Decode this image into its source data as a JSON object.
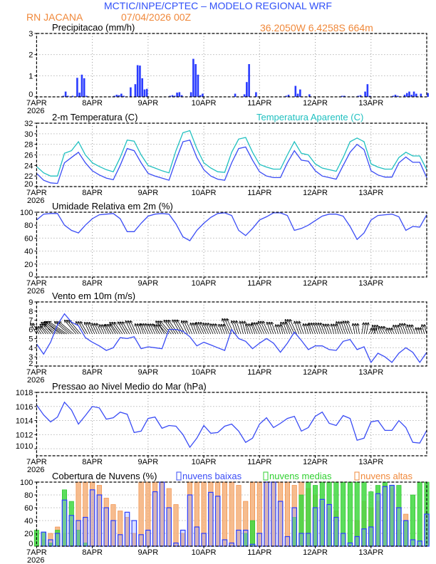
{
  "header": {
    "title": "MCTIC/INPE/CPTEC – MODELO REGIONAL WRF",
    "station": "RN JACANA",
    "run": "07/04/2026 00Z",
    "location": "36.2050W 6.4258S 664m"
  },
  "colors": {
    "title": "#3050f8",
    "orange": "#f0883a",
    "cyan": "#20c0c0",
    "line": "#3a4cf5",
    "low": "#3a4cf5",
    "mid": "#30d030",
    "high": "#f5a060"
  },
  "time_axis": {
    "labels": [
      "7APR",
      "8APR",
      "9APR",
      "10APR",
      "11APR",
      "12APR",
      "13APR"
    ],
    "year": "2026",
    "start": "7APR 00Z",
    "end": "14APR 00Z"
  },
  "chart_data": [
    {
      "type": "bar",
      "title": "Precipitacao (mm/h)",
      "ylim": [
        0,
        3
      ],
      "yticks": [
        "0",
        "1",
        "2",
        "3"
      ],
      "time_step": "1h",
      "grid": true,
      "values": [
        0,
        0,
        0,
        0,
        0,
        0,
        0,
        0,
        0,
        0,
        0,
        0.05,
        0.25,
        0.05,
        0,
        0.05,
        0,
        0.9,
        0.2,
        1.05,
        0.88,
        0.05,
        0,
        0,
        0,
        0,
        0,
        0,
        0,
        0,
        0,
        0,
        0,
        0.05,
        0.1,
        0.08,
        0.15,
        0.05,
        0,
        0,
        0.45,
        0,
        0.6,
        1.5,
        1.48,
        0.88,
        0.35,
        0.38,
        0,
        0,
        0,
        0,
        0,
        0,
        0,
        0,
        0,
        0.05,
        0.08,
        0.05,
        0.2,
        0.22,
        0.08,
        0,
        0,
        0,
        0.22,
        1.8,
        1.55,
        1.05,
        0.08,
        0.15,
        0,
        0,
        0,
        0,
        0,
        0,
        0,
        0,
        0,
        0,
        0,
        0,
        0,
        0.15,
        0,
        0,
        0,
        0.12,
        0.7,
        1.55,
        0,
        0,
        0.22,
        0,
        0,
        0,
        0,
        0,
        0,
        0,
        0,
        0,
        0,
        0,
        0,
        0.05,
        0.1,
        0,
        0,
        0.52,
        0.15,
        0.35,
        0,
        0,
        0,
        0.12,
        0,
        0,
        0,
        0,
        0,
        0,
        0,
        0,
        0,
        0,
        0,
        0,
        0,
        0.05,
        0.05,
        0,
        0,
        0,
        0,
        0,
        0.05,
        0.08,
        0,
        0.25,
        0.6,
        0.05,
        0,
        0,
        0,
        0,
        0,
        0,
        0,
        0,
        0,
        0.05,
        0.1,
        0.05,
        0,
        0,
        0.1,
        0.18,
        0.25,
        0.1,
        0.25,
        0.15,
        0,
        0.15,
        0,
        0,
        0.18
      ]
    },
    {
      "type": "line",
      "title": "2-m Temperatura (C)",
      "legend": "Temperatura Aparente (C)",
      "ylim": [
        20,
        32
      ],
      "yticks": [
        "20",
        "22",
        "24",
        "26",
        "28",
        "30",
        "32"
      ],
      "time_step": "3h",
      "grid": true,
      "series": [
        {
          "name": "2-m Temperatura (C)",
          "values": [
            22.5,
            21.2,
            20.7,
            20.6,
            24.5,
            25.5,
            26.5,
            24.5,
            23.0,
            22.2,
            21.6,
            21.3,
            24.0,
            27.2,
            26.8,
            24.5,
            22.5,
            22.0,
            21.6,
            21.2,
            25.0,
            28.5,
            28.8,
            25.5,
            23.2,
            22.0,
            21.4,
            21.2,
            24.5,
            27.2,
            27.5,
            25.0,
            22.8,
            22.0,
            21.7,
            21.7,
            24.5,
            26.8,
            25.0,
            24.8,
            23.0,
            22.0,
            21.7,
            21.4,
            24.0,
            26.5,
            28.0,
            27.0,
            23.0,
            22.2,
            21.8,
            21.8,
            24.5,
            25.6,
            24.6,
            24.6,
            21.7
          ]
        },
        {
          "name": "Temperatura Aparente (C)",
          "values": [
            23.8,
            22.6,
            22.0,
            22.0,
            26.3,
            26.8,
            28.5,
            26.0,
            24.5,
            23.8,
            23.2,
            22.8,
            25.5,
            28.8,
            28.6,
            26.0,
            24.0,
            23.5,
            23.0,
            22.6,
            26.8,
            30.2,
            30.6,
            27.2,
            24.5,
            23.5,
            22.8,
            22.7,
            26.5,
            29.0,
            29.3,
            26.5,
            24.2,
            23.7,
            23.3,
            23.3,
            26.0,
            28.5,
            26.3,
            26.0,
            24.3,
            23.5,
            23.2,
            22.9,
            25.5,
            28.5,
            29.2,
            28.5,
            24.3,
            23.7,
            23.3,
            23.3,
            25.5,
            26.5,
            25.8,
            25.8,
            23.2
          ]
        }
      ]
    },
    {
      "type": "line",
      "title": "Umidade Relativa em 2m (%)",
      "ylim": [
        0,
        100
      ],
      "yticks": [
        "0",
        "20",
        "40",
        "60",
        "80",
        "100"
      ],
      "time_step": "3h",
      "grid": true,
      "values": [
        88,
        97,
        98,
        98,
        80,
        72,
        68,
        80,
        90,
        96,
        97,
        98,
        90,
        70,
        70,
        83,
        94,
        97,
        98,
        97,
        82,
        62,
        56,
        72,
        83,
        92,
        98,
        99,
        95,
        72,
        64,
        75,
        88,
        93,
        99,
        99,
        95,
        72,
        75,
        80,
        87,
        94,
        97,
        97,
        94,
        78,
        58,
        68,
        88,
        95,
        96,
        97,
        93,
        72,
        78,
        77,
        96
      ]
    },
    {
      "type": "line+vectors",
      "title": "Vento em 10m (m/s)",
      "ylim": [
        2,
        9
      ],
      "yticks": [
        "2",
        "3",
        "4",
        "5",
        "6",
        "7",
        "8",
        "9"
      ],
      "time_step": "3h",
      "grid": true,
      "values": [
        4.4,
        3.3,
        4.6,
        6.5,
        7.7,
        6.8,
        6.4,
        5.1,
        4.6,
        4.2,
        3.7,
        4.0,
        5.1,
        5.0,
        5.2,
        3.9,
        4.1,
        4.0,
        3.9,
        6.0,
        6.0,
        5.8,
        5.2,
        4.2,
        4.6,
        4.3,
        4.0,
        3.7,
        6.0,
        5.0,
        4.7,
        3.9,
        4.5,
        5.0,
        4.5,
        3.5,
        4.5,
        5.7,
        4.8,
        3.8,
        4.2,
        4.2,
        3.8,
        3.7,
        4.7,
        4.9,
        3.8,
        4.1,
        2.4,
        3.4,
        3.0,
        2.4,
        3.4,
        4.0,
        3.5,
        2.4,
        3.5
      ],
      "direction_deg": [
        120,
        125,
        130,
        140,
        145,
        140,
        130,
        120,
        115,
        115,
        115,
        120,
        125,
        120,
        115,
        110,
        115,
        115,
        120,
        130,
        125,
        120,
        115,
        110,
        115,
        115,
        115,
        110,
        115,
        110,
        105,
        110,
        115,
        115,
        110,
        105,
        110,
        115,
        110,
        105,
        110,
        110,
        110,
        105,
        110,
        110,
        100,
        80,
        60,
        110,
        115,
        115,
        110,
        110,
        110,
        105,
        105
      ]
    },
    {
      "type": "line",
      "title": "Pressao ao Nivel Medio do Mar (hPa)",
      "ylim": [
        1009,
        1018
      ],
      "yticks": [
        "1010",
        "1012",
        "1014",
        "1016",
        "1018"
      ],
      "time_step": "3h",
      "grid": true,
      "values": [
        1016.2,
        1014.8,
        1013.8,
        1014.5,
        1016.6,
        1015.5,
        1013.5,
        1014.7,
        1016.0,
        1015.8,
        1014.2,
        1014.4,
        1015.2,
        1014.9,
        1012.3,
        1012.5,
        1014.3,
        1014.5,
        1012.9,
        1013.3,
        1013.2,
        1012.0,
        1010.2,
        1011.5,
        1013.3,
        1012.2,
        1012.3,
        1013.2,
        1013.5,
        1012.5,
        1010.9,
        1011.5,
        1013.5,
        1014.4,
        1013.0,
        1013.6,
        1014.3,
        1014.6,
        1012.5,
        1013.0,
        1014.6,
        1015.2,
        1013.6,
        1013.3,
        1014.7,
        1014.3,
        1011.2,
        1011.5,
        1013.8,
        1014.0,
        1012.6,
        1012.6,
        1014.0,
        1013.0,
        1010.9,
        1010.8,
        1012.6
      ]
    },
    {
      "type": "bar",
      "title": "Cobertura de Nuvens (%)",
      "ylim": [
        0,
        100
      ],
      "yticks": [
        "0",
        "20",
        "40",
        "60",
        "80",
        "100"
      ],
      "time_step": "3h",
      "grid": true,
      "series": [
        {
          "name": "nuvens altas",
          "values": [
            0,
            10,
            20,
            30,
            20,
            40,
            100,
            100,
            100,
            95,
            75,
            65,
            55,
            45,
            20,
            100,
            100,
            100,
            100,
            90,
            65,
            20,
            100,
            100,
            100,
            100,
            100,
            100,
            100,
            95,
            70,
            100,
            100,
            100,
            100,
            100,
            100,
            95,
            100,
            90,
            80,
            70,
            60,
            55,
            0,
            0,
            40,
            70,
            60,
            70,
            95,
            90,
            25,
            50,
            0,
            0,
            0
          ]
        },
        {
          "name": "nuvens medias",
          "values": [
            25,
            22,
            5,
            25,
            88,
            70,
            25,
            5,
            0,
            0,
            0,
            0,
            0,
            0,
            0,
            0,
            0,
            0,
            0,
            0,
            0,
            0,
            0,
            0,
            0,
            0,
            0,
            0,
            0,
            0,
            20,
            40,
            0,
            0,
            0,
            0,
            0,
            45,
            80,
            100,
            95,
            100,
            100,
            100,
            100,
            100,
            100,
            100,
            85,
            95,
            100,
            95,
            95,
            40,
            80,
            100,
            100
          ]
        },
        {
          "name": "nuvens baixas",
          "values": [
            0,
            22,
            10,
            20,
            72,
            48,
            40,
            45,
            88,
            80,
            60,
            40,
            18,
            53,
            40,
            18,
            25,
            85,
            100,
            60,
            5,
            25,
            80,
            30,
            20,
            84,
            78,
            10,
            5,
            25,
            25,
            3,
            20,
            100,
            100,
            70,
            15,
            60,
            20,
            20,
            60,
            73,
            65,
            45,
            20,
            5,
            15,
            27,
            30,
            82,
            93,
            95,
            60,
            40,
            10,
            8,
            50
          ]
        }
      ]
    }
  ]
}
